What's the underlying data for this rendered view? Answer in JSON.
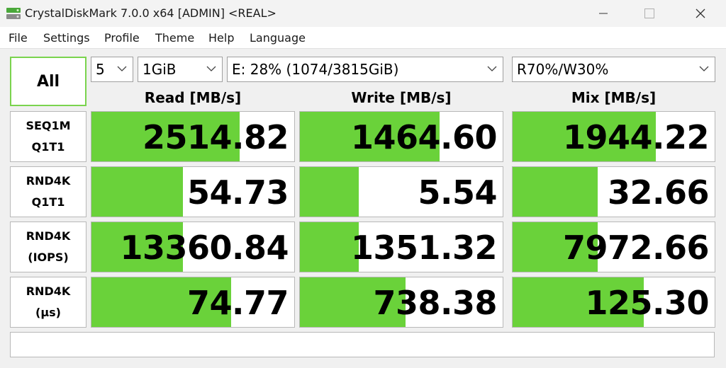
{
  "window": {
    "title": "CrystalDiskMark 7.0.0 x64 [ADMIN] <REAL>",
    "icon": "crystaldiskmark-app-icon"
  },
  "menu": [
    "File",
    "Settings",
    "Profile",
    "Theme",
    "Help",
    "Language"
  ],
  "controls": {
    "all_label": "All",
    "count": "5",
    "size": "1GiB",
    "drive": "E: 28% (1074/3815GiB)",
    "mix": "R70%/W30%"
  },
  "headers": {
    "read": "Read [MB/s]",
    "write": "Write [MB/s]",
    "mix": "Mix [MB/s]"
  },
  "rows": [
    {
      "label1": "SEQ1M",
      "label2": "Q1T1",
      "read": {
        "text": "2514.82",
        "fill": 0.73
      },
      "write": {
        "text": "1464.60",
        "fill": 0.69
      },
      "mix": {
        "text": "1944.22",
        "fill": 0.71
      }
    },
    {
      "label1": "RND4K",
      "label2": "Q1T1",
      "read": {
        "text": "54.73",
        "fill": 0.45
      },
      "write": {
        "text": "5.54",
        "fill": 0.29
      },
      "mix": {
        "text": "32.66",
        "fill": 0.42
      }
    },
    {
      "label1": "RND4K",
      "label2": "(IOPS)",
      "read": {
        "text": "13360.84",
        "fill": 0.45
      },
      "write": {
        "text": "1351.32",
        "fill": 0.29
      },
      "mix": {
        "text": "7972.66",
        "fill": 0.42
      }
    },
    {
      "label1": "RND4K",
      "label2": "(µs)",
      "read": {
        "text": "74.77",
        "fill": 0.69
      },
      "write": {
        "text": "738.38",
        "fill": 0.52
      },
      "mix": {
        "text": "125.30",
        "fill": 0.65
      }
    }
  ],
  "colors": {
    "bar": "#6ad23a",
    "all_border": "#7ad34e"
  }
}
